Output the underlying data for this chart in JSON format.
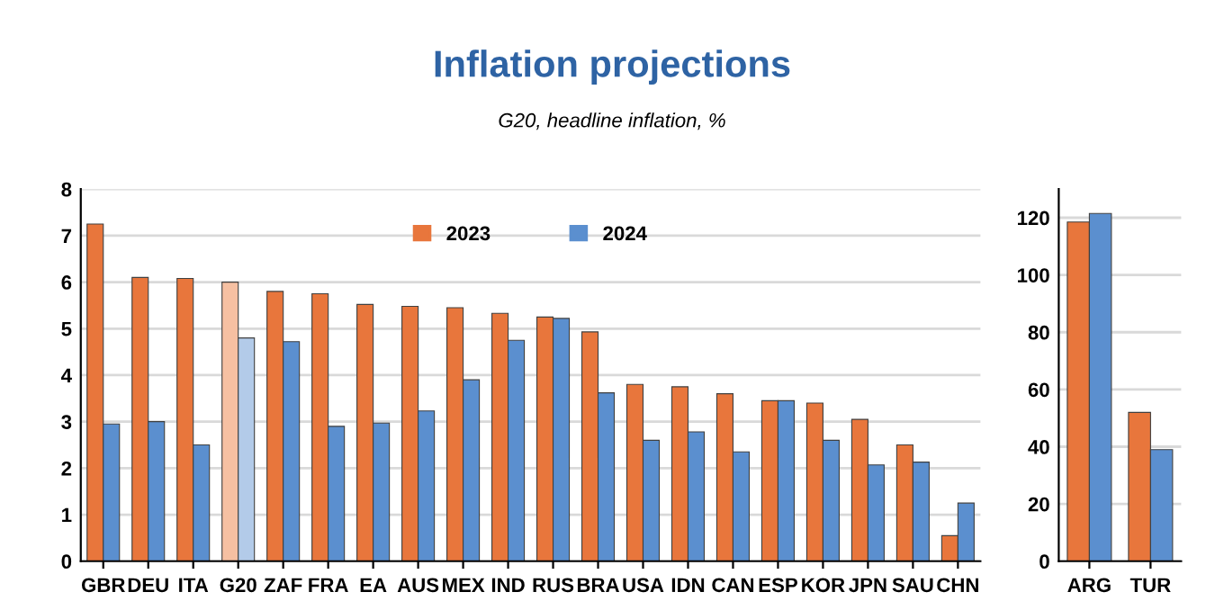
{
  "chart_data": [
    {
      "type": "bar",
      "title": "Inflation projections",
      "subtitle": "G20, headline inflation, %",
      "categories": [
        "GBR",
        "DEU",
        "ITA",
        "G20",
        "ZAF",
        "FRA",
        "EA",
        "AUS",
        "MEX",
        "IND",
        "RUS",
        "BRA",
        "USA",
        "IDN",
        "CAN",
        "ESP",
        "KOR",
        "JPN",
        "SAU",
        "CHN"
      ],
      "series": [
        {
          "name": "2023",
          "color": "#e8763c",
          "colors": [
            "#e8763c",
            "#e8763c",
            "#e8763c",
            "#f6c0a2",
            "#e8763c",
            "#e8763c",
            "#e8763c",
            "#e8763c",
            "#e8763c",
            "#e8763c",
            "#e8763c",
            "#e8763c",
            "#e8763c",
            "#e8763c",
            "#e8763c",
            "#e8763c",
            "#e8763c",
            "#e8763c",
            "#e8763c",
            "#e8763c"
          ],
          "values": [
            7.25,
            6.1,
            6.08,
            6.0,
            5.8,
            5.75,
            5.52,
            5.48,
            5.45,
            5.33,
            5.25,
            4.93,
            3.8,
            3.75,
            3.6,
            3.45,
            3.4,
            3.05,
            2.5,
            0.55
          ]
        },
        {
          "name": "2024",
          "color": "#5b8fcf",
          "colors": [
            "#5b8fcf",
            "#5b8fcf",
            "#5b8fcf",
            "#b3cbe9",
            "#5b8fcf",
            "#5b8fcf",
            "#5b8fcf",
            "#5b8fcf",
            "#5b8fcf",
            "#5b8fcf",
            "#5b8fcf",
            "#5b8fcf",
            "#5b8fcf",
            "#5b8fcf",
            "#5b8fcf",
            "#5b8fcf",
            "#5b8fcf",
            "#5b8fcf",
            "#5b8fcf",
            "#5b8fcf"
          ],
          "values": [
            2.95,
            3.0,
            2.5,
            4.8,
            4.72,
            2.9,
            2.97,
            3.23,
            3.9,
            4.75,
            5.22,
            3.62,
            2.6,
            2.78,
            2.35,
            3.45,
            2.6,
            2.07,
            2.13,
            1.25
          ]
        }
      ],
      "ylim": [
        0,
        8
      ],
      "yticks": [
        0,
        1,
        2,
        3,
        4,
        5,
        6,
        7,
        8
      ],
      "grid": "y",
      "legend": "top"
    },
    {
      "type": "bar",
      "categories": [
        "ARG",
        "TUR"
      ],
      "series": [
        {
          "color": "#e8763c",
          "values": [
            118.5,
            52
          ]
        },
        {
          "color": "#5b8fcf",
          "values": [
            121.5,
            39
          ]
        }
      ],
      "ylim": [
        0,
        130
      ],
      "yticks": [
        0,
        20,
        40,
        60,
        80,
        100,
        120
      ],
      "grid": "y"
    }
  ]
}
